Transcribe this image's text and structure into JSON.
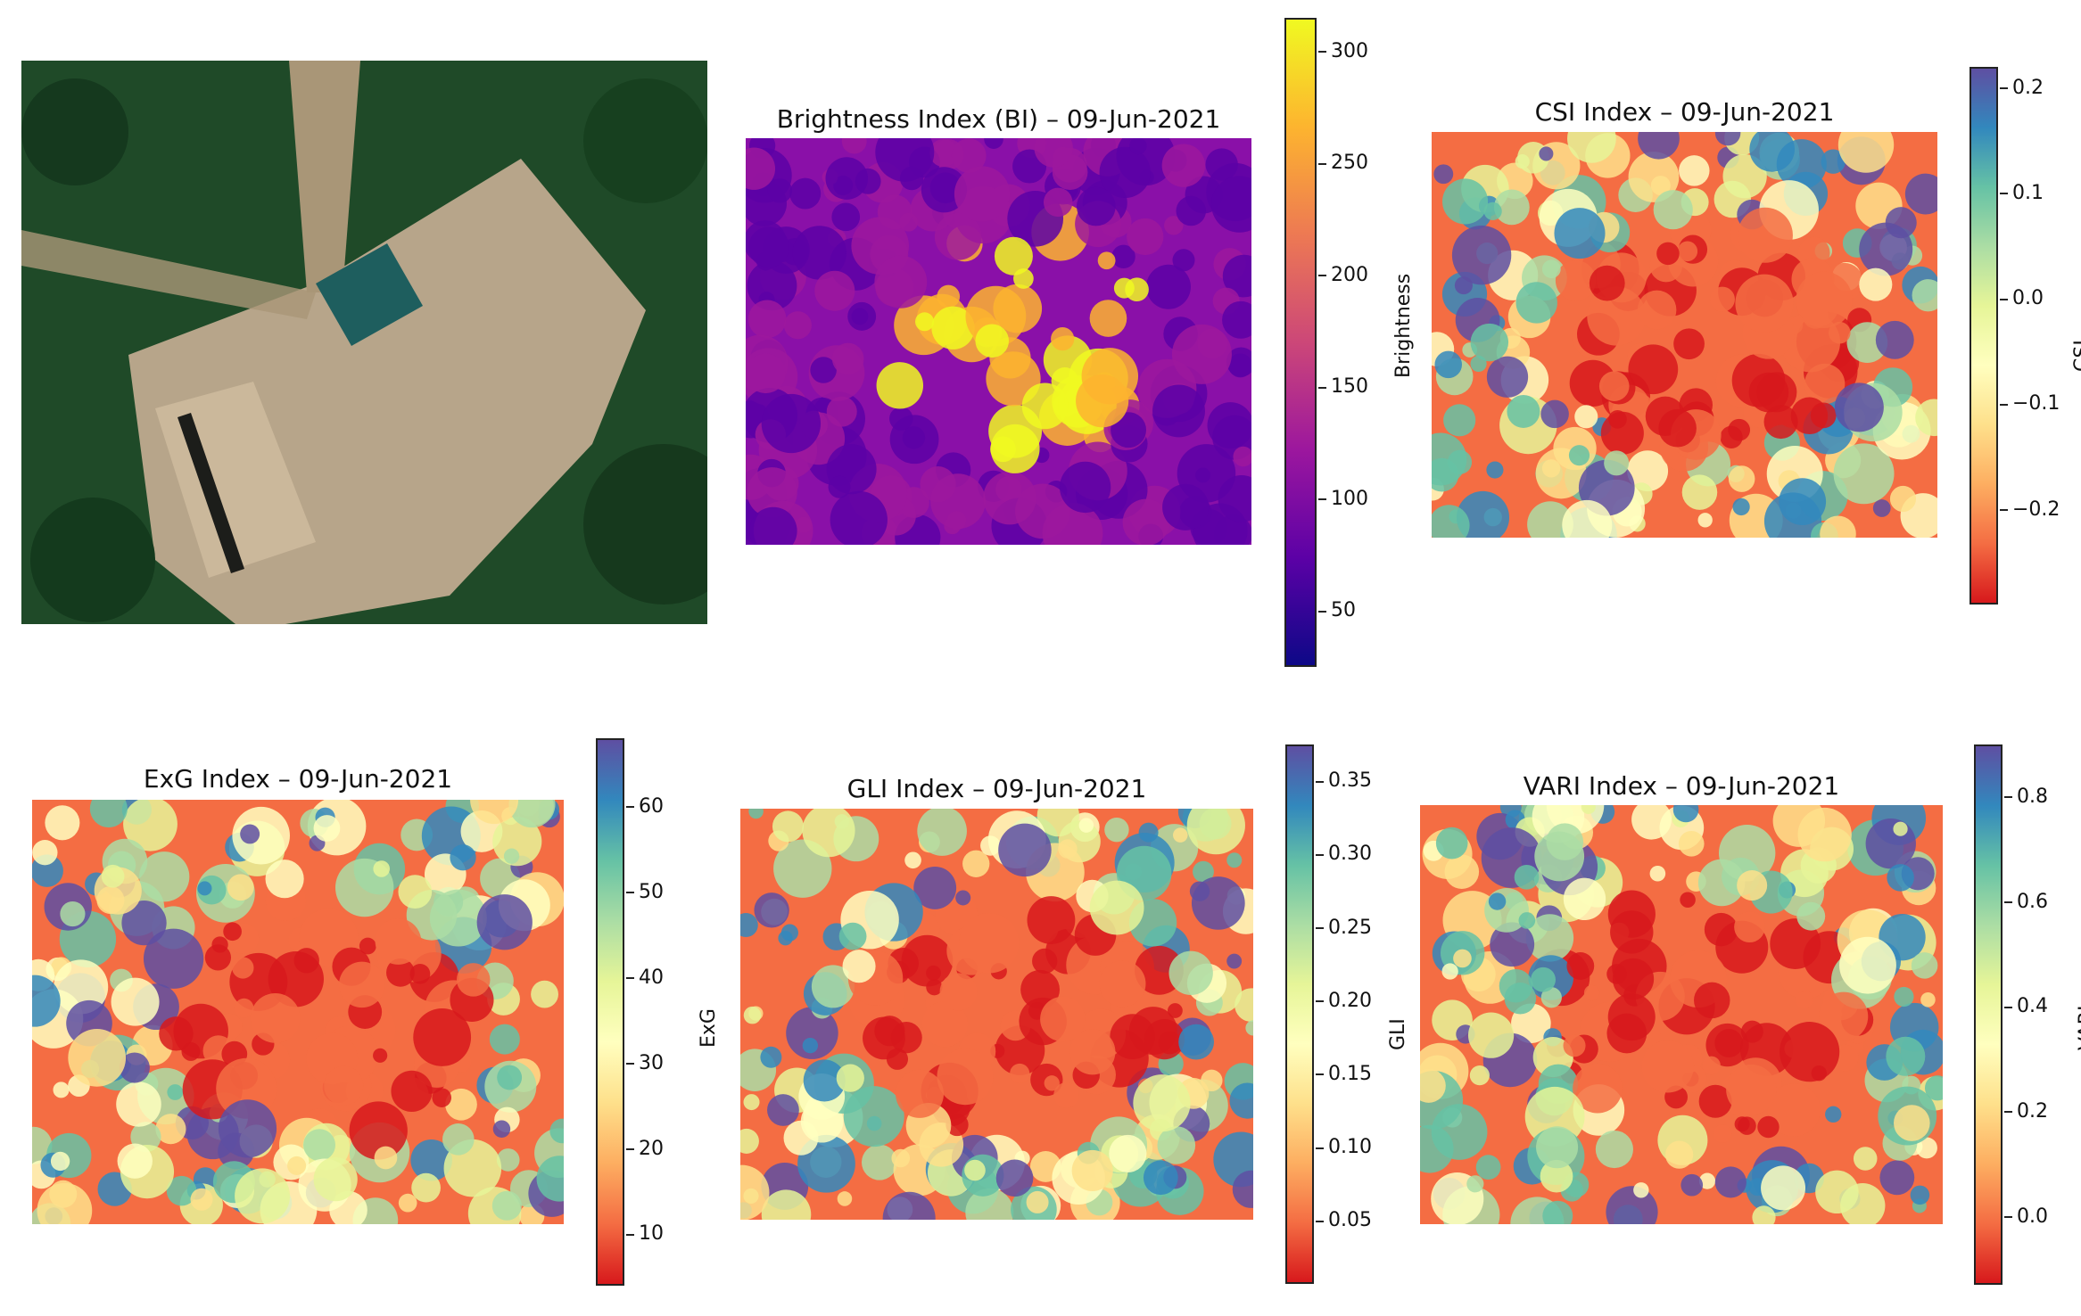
{
  "photo": {
    "alt_name": "aerial-photo"
  },
  "chart_data": [
    {
      "type": "heatmap",
      "title": "Brightness Index (BI) – 09-Jun-2021",
      "colorbar_label": "Brightness",
      "colormap": "plasma",
      "ticks": [
        "300",
        "250",
        "200",
        "150",
        "100",
        "50"
      ],
      "tick_values": [
        300,
        250,
        200,
        150,
        100,
        50
      ],
      "range": [
        25,
        315
      ]
    },
    {
      "type": "heatmap",
      "title": "CSI Index – 09-Jun-2021",
      "colorbar_label": "CSI",
      "colormap": "Spectral",
      "ticks": [
        "0.2",
        "0.1",
        "0.0",
        "−0.1",
        "−0.2"
      ],
      "tick_values": [
        0.2,
        0.1,
        0.0,
        -0.1,
        -0.2
      ],
      "range": [
        -0.29,
        0.22
      ]
    },
    {
      "type": "heatmap",
      "title": "ExG Index – 09-Jun-2021",
      "colorbar_label": "ExG",
      "colormap": "Spectral",
      "ticks": [
        "60",
        "50",
        "40",
        "30",
        "20",
        "10"
      ],
      "tick_values": [
        60,
        50,
        40,
        30,
        20,
        10
      ],
      "range": [
        4,
        68
      ]
    },
    {
      "type": "heatmap",
      "title": "GLI Index – 09-Jun-2021",
      "colorbar_label": "GLI",
      "colormap": "Spectral",
      "ticks": [
        "0.35",
        "0.30",
        "0.25",
        "0.20",
        "0.15",
        "0.10",
        "0.05"
      ],
      "tick_values": [
        0.35,
        0.3,
        0.25,
        0.2,
        0.15,
        0.1,
        0.05
      ],
      "range": [
        0.007,
        0.375
      ]
    },
    {
      "type": "heatmap",
      "title": "VARI Index – 09-Jun-2021",
      "colorbar_label": "VARI",
      "colormap": "Spectral",
      "ticks": [
        "0.8",
        "0.6",
        "0.4",
        "0.2",
        "0.0"
      ],
      "tick_values": [
        0.8,
        0.6,
        0.4,
        0.2,
        0.0
      ],
      "range": [
        -0.13,
        0.9
      ]
    }
  ]
}
